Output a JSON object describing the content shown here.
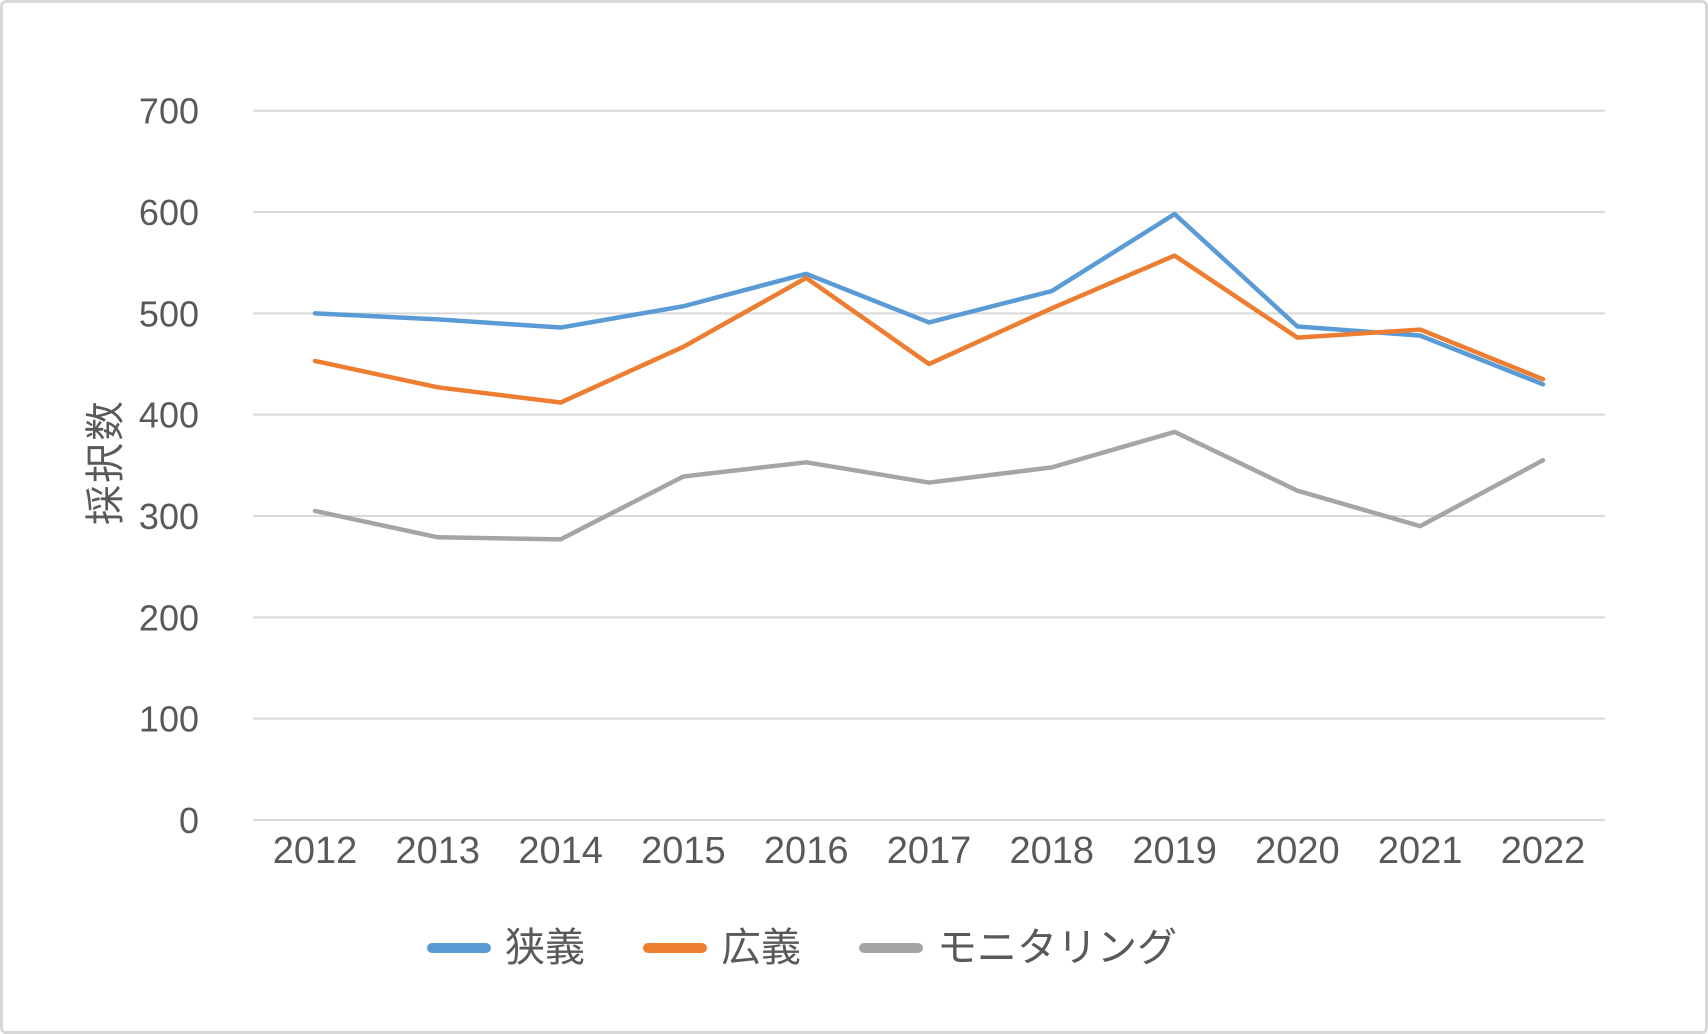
{
  "chart_data": {
    "type": "line",
    "title": "",
    "xlabel": "",
    "ylabel": "採択数",
    "categories": [
      "2012",
      "2013",
      "2014",
      "2015",
      "2016",
      "2017",
      "2018",
      "2019",
      "2020",
      "2021",
      "2022"
    ],
    "series": [
      {
        "name": "狭義",
        "color": "#5B9BD5",
        "values": [
          500,
          494,
          486,
          507,
          539,
          491,
          522,
          598,
          487,
          478,
          430
        ]
      },
      {
        "name": "広義",
        "color": "#ED7D31",
        "values": [
          453,
          427,
          412,
          467,
          535,
          450,
          505,
          557,
          476,
          484,
          435
        ]
      },
      {
        "name": "モニタリング",
        "color": "#A5A5A5",
        "values": [
          305,
          279,
          277,
          339,
          353,
          333,
          348,
          383,
          325,
          290,
          355
        ]
      }
    ],
    "ylim": [
      0,
      700
    ],
    "yticks": [
      0,
      100,
      200,
      300,
      400,
      500,
      600,
      700
    ],
    "grid": true,
    "legend_position": "bottom"
  },
  "style": {
    "gridline_color": "#D9D9D9",
    "tick_label_color": "#595959",
    "background_color": "#FFFFFF",
    "border_color": "#D8D8D8"
  }
}
